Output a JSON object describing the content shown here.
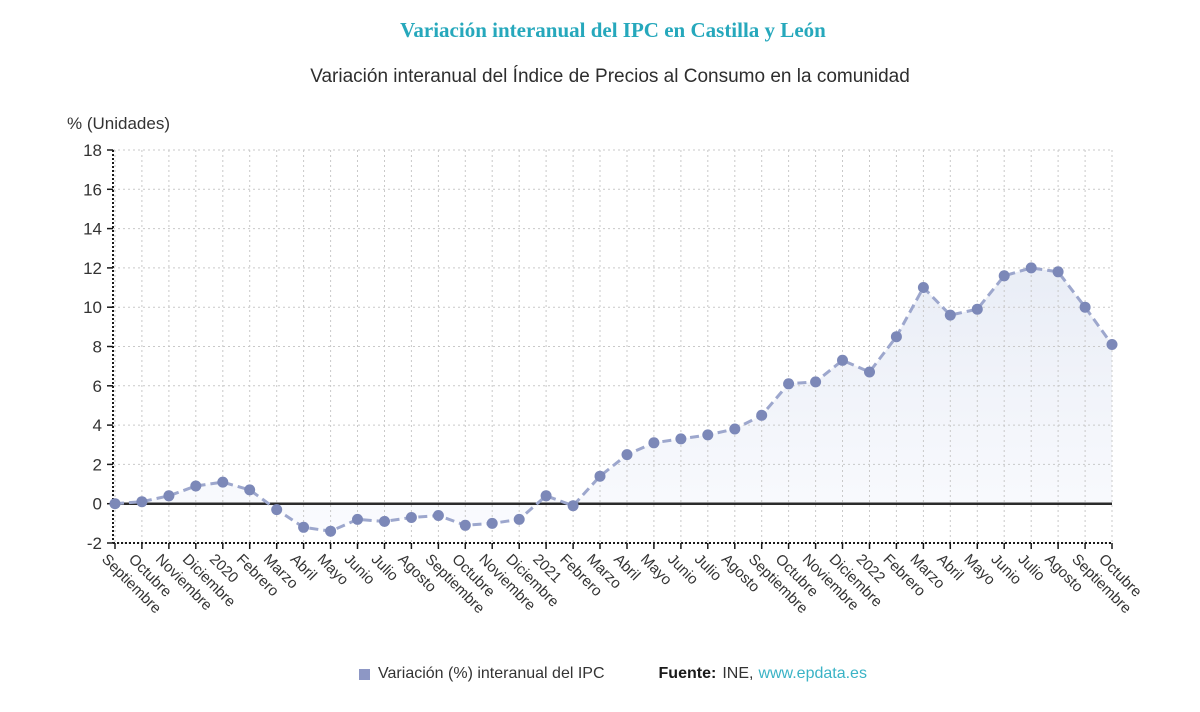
{
  "page": {
    "title": "Variación interanual del IPC en Castilla y León",
    "subtitle": "Variación interanual del Índice de Precios al Consumo en la comunidad"
  },
  "theme": {
    "accent": "#26a8bc",
    "link": "#3ab3c6",
    "text": "#333333"
  },
  "chart_data": {
    "type": "line",
    "title": "Variación interanual del IPC en Castilla y León",
    "subtitle": "Variación interanual del Índice de Precios al Consumo en la comunidad",
    "ylabel": "% (Unidades)",
    "xlabel": "",
    "ylim": [
      -2,
      18
    ],
    "ytick_step": 2,
    "yticks": [
      18,
      16,
      14,
      12,
      10,
      8,
      6,
      4,
      2,
      0,
      -2
    ],
    "grid": true,
    "line_style": "dashed",
    "markers": true,
    "area_fill": true,
    "legend_position": "bottom",
    "categories": [
      "Septiembre",
      "Octubre",
      "Noviembre",
      "Diciembre",
      "2020",
      "Febrero",
      "Marzo",
      "Abril",
      "Mayo",
      "Junio",
      "Julio",
      "Agosto",
      "Septiembre",
      "Octubre",
      "Noviembre",
      "Diciembre",
      "2021",
      "Febrero",
      "Marzo",
      "Abril",
      "Mayo",
      "Junio",
      "Julio",
      "Agosto",
      "Septiembre",
      "Octubre",
      "Noviembre",
      "Diciembre",
      "2022",
      "Febrero",
      "Marzo",
      "Abril",
      "Mayo",
      "Junio",
      "Julio",
      "Agosto",
      "Septiembre",
      "Octubre"
    ],
    "series": [
      {
        "name": "Variación (%) interanual del IPC",
        "values": [
          0.0,
          0.1,
          0.4,
          0.9,
          1.1,
          0.7,
          -0.3,
          -1.2,
          -1.4,
          -0.8,
          -0.9,
          -0.7,
          -0.6,
          -1.1,
          -1.0,
          -0.8,
          0.4,
          -0.1,
          1.4,
          2.5,
          3.1,
          3.3,
          3.5,
          3.8,
          4.5,
          6.1,
          6.2,
          7.3,
          6.7,
          8.5,
          11.0,
          9.6,
          9.9,
          11.6,
          12.0,
          11.8,
          10.0,
          8.1
        ]
      }
    ],
    "colors": {
      "line": "#9da7cd",
      "marker": "#7c88b8",
      "area_top": "#e9edf6",
      "area_bottom": "#fafbfe",
      "grid": "#c9c9c9",
      "axis": "#1a1a1a",
      "zero_line": "#2b2b2b",
      "legend_swatch": "#8d97c5"
    }
  },
  "legend": {
    "label": "Variación (%) interanual del IPC"
  },
  "source": {
    "prefix": "Fuente:",
    "name": "INE,",
    "link": "www.epdata.es"
  }
}
